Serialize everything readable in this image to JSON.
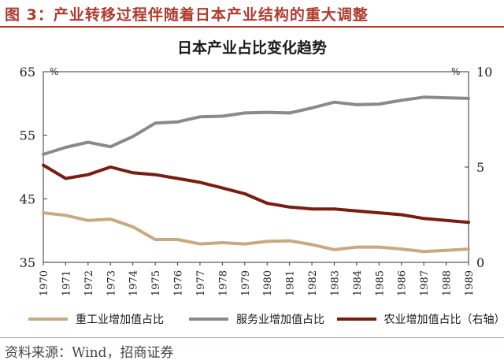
{
  "header": {
    "figure_title": "图 3：产业转移过程伴随着日本产业结构的重大调整"
  },
  "footer": {
    "source": "资料来源：Wind，招商证券"
  },
  "colors": {
    "heavy": "#c8aa80",
    "service": "#8a8a8a",
    "agri": "#7a1d10",
    "accent": "#b03a2e"
  },
  "chart_data": {
    "type": "line",
    "title": "日本产业占比变化趋势",
    "x": [
      "1970",
      "1971",
      "1972",
      "1973",
      "1974",
      "1975",
      "1976",
      "1977",
      "1978",
      "1979",
      "1980",
      "1981",
      "1982",
      "1983",
      "1984",
      "1985",
      "1986",
      "1987",
      "1988",
      "1989"
    ],
    "y_left": {
      "range": [
        35,
        65
      ],
      "ticks": [
        "35",
        "45",
        "55",
        "65"
      ],
      "unit": "%"
    },
    "y_right": {
      "range": [
        0,
        10
      ],
      "ticks": [
        "0",
        "5",
        "10"
      ],
      "unit": "%"
    },
    "grid": false,
    "legend_position": "bottom",
    "series": [
      {
        "name": "重工业增加值占比",
        "axis": "left",
        "values": [
          42.8,
          42.4,
          41.6,
          41.8,
          40.6,
          38.6,
          38.6,
          37.9,
          38.1,
          37.9,
          38.3,
          38.4,
          37.8,
          37.0,
          37.4,
          37.4,
          37.1,
          36.7,
          36.9,
          37.1
        ]
      },
      {
        "name": "服务业增加值占比",
        "axis": "left",
        "values": [
          52.0,
          53.1,
          53.9,
          53.2,
          54.8,
          56.9,
          57.1,
          57.9,
          58.0,
          58.5,
          58.6,
          58.5,
          59.3,
          60.2,
          59.8,
          59.9,
          60.5,
          61.0,
          60.9,
          60.8
        ]
      },
      {
        "name": "农业增加值占比（右轴）",
        "axis": "right",
        "values": [
          5.1,
          4.4,
          4.6,
          5.0,
          4.7,
          4.6,
          4.4,
          4.2,
          3.9,
          3.6,
          3.1,
          2.9,
          2.8,
          2.8,
          2.7,
          2.6,
          2.5,
          2.3,
          2.2,
          2.1
        ]
      }
    ]
  }
}
